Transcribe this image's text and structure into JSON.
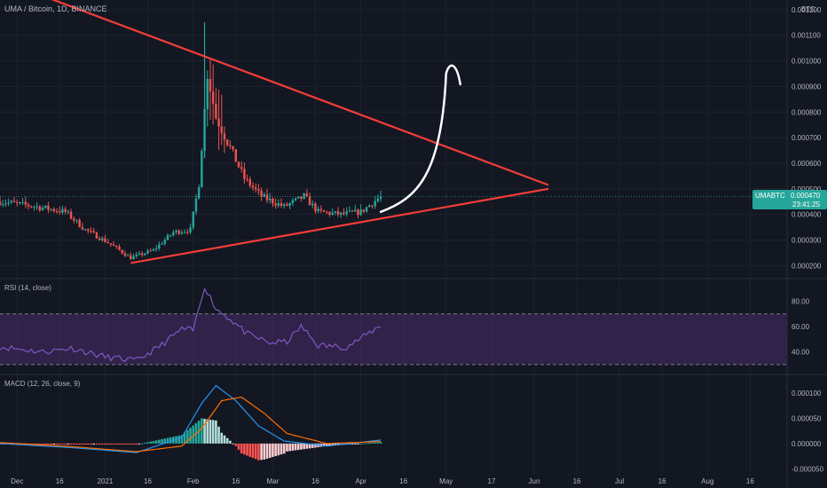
{
  "header": {
    "symbol_title": "UMA / Bitcoin, 1D, BINANCE",
    "currency": "BTC"
  },
  "price_tag": {
    "ticker": "UMABTC",
    "price": "0.000470",
    "countdown": "23:41:25"
  },
  "colors": {
    "background": "#131722",
    "up": "#26a69a",
    "down": "#ef5350",
    "trendline": "#f23d3a",
    "rsi_line": "#7e57c2",
    "rsi_band": "#4a2b6b",
    "macd_line": "#2196f3",
    "signal_line": "#ff6d00",
    "arrow": "#ffffff"
  },
  "panes": {
    "rsi_label": "RSI (14, close)",
    "macd_label": "MACD (12, 26, close, 9)"
  },
  "chart_data": [
    {
      "type": "candlestick",
      "pane": "price",
      "ylim": [
        0.00017,
        0.00121
      ],
      "y_ticks": [
        "0.001200",
        "0.001100",
        "0.001000",
        "0.000900",
        "0.000800",
        "0.000700",
        "0.000600",
        "0.000500",
        "0.000400",
        "0.000300",
        "0.000200"
      ],
      "x_ticks": [
        "Dec",
        "16",
        "2021",
        "16",
        "Feb",
        "16",
        "Mar",
        "16",
        "Apr",
        "16",
        "May",
        "17",
        "Jun",
        "16",
        "Jul",
        "16",
        "Aug",
        "16"
      ],
      "x_range": [
        "2020-11-25",
        "2021-08-29"
      ],
      "x_tick_dates": [
        "2020-12-01",
        "2020-12-16",
        "2021-01-01",
        "2021-01-16",
        "2021-02-01",
        "2021-02-16",
        "2021-03-01",
        "2021-03-16",
        "2021-04-01",
        "2021-04-16",
        "2021-05-01",
        "2021-05-17",
        "2021-06-01",
        "2021-06-16",
        "2021-07-01",
        "2021-07-16",
        "2021-08-01",
        "2021-08-16"
      ],
      "price_anchors": [
        [
          "2020-11-25",
          0.00045
        ],
        [
          "2020-12-08",
          0.00043
        ],
        [
          "2020-12-18",
          0.00041
        ],
        [
          "2020-12-25",
          0.00034
        ],
        [
          "2021-01-02",
          0.00029
        ],
        [
          "2021-01-10",
          0.00023
        ],
        [
          "2021-01-18",
          0.00026
        ],
        [
          "2021-01-25",
          0.00033
        ],
        [
          "2021-01-31",
          0.00034
        ],
        [
          "2021-02-03",
          0.00052
        ],
        [
          "2021-02-06",
          0.00095
        ],
        [
          "2021-02-09",
          0.00078
        ],
        [
          "2021-02-14",
          0.00066
        ],
        [
          "2021-02-19",
          0.00054
        ],
        [
          "2021-02-25",
          0.00047
        ],
        [
          "2021-03-05",
          0.00043
        ],
        [
          "2021-03-12",
          0.00047
        ],
        [
          "2021-03-17",
          0.00041
        ],
        [
          "2021-03-25",
          0.0004
        ],
        [
          "2021-04-01",
          0.00041
        ],
        [
          "2021-04-08",
          0.00047
        ]
      ],
      "last_price": 0.00047,
      "annotations": {
        "triangle_upper": [
          [
            "2020-12-11",
            0.00125
          ],
          [
            "2021-06-06",
            0.000515
          ]
        ],
        "triangle_lower": [
          [
            "2021-01-10",
            0.00021
          ],
          [
            "2021-06-06",
            0.0005
          ]
        ],
        "arrow": "curved arrow upward from apex"
      }
    },
    {
      "type": "line",
      "pane": "rsi",
      "ylim": [
        25,
        95
      ],
      "y_ticks": [
        "80.00",
        "60.00",
        "40.00"
      ],
      "band": [
        30,
        70
      ],
      "anchors": [
        [
          "2020-11-25",
          44
        ],
        [
          "2020-12-10",
          40
        ],
        [
          "2020-12-20",
          43
        ],
        [
          "2021-01-01",
          36
        ],
        [
          "2021-01-12",
          33
        ],
        [
          "2021-01-20",
          44
        ],
        [
          "2021-01-28",
          58
        ],
        [
          "2021-02-01",
          57
        ],
        [
          "2021-02-05",
          92
        ],
        [
          "2021-02-09",
          74
        ],
        [
          "2021-02-14",
          66
        ],
        [
          "2021-02-20",
          54
        ],
        [
          "2021-02-28",
          47
        ],
        [
          "2021-03-06",
          48
        ],
        [
          "2021-03-11",
          60
        ],
        [
          "2021-03-17",
          45
        ],
        [
          "2021-03-27",
          44
        ],
        [
          "2021-04-02",
          52
        ],
        [
          "2021-04-08",
          61
        ]
      ]
    },
    {
      "type": "histogram+lines",
      "pane": "macd",
      "ylim": [
        -6e-05,
        0.00013
      ],
      "y_ticks": [
        "0.000100",
        "0.000050",
        "0.000000",
        "-0.000050"
      ],
      "macd_anchors": [
        [
          "2020-11-25",
          0.0
        ],
        [
          "2020-12-20",
          -8e-06
        ],
        [
          "2021-01-12",
          -1.8e-05
        ],
        [
          "2021-01-28",
          1.2e-05
        ],
        [
          "2021-02-04",
          8e-05
        ],
        [
          "2021-02-09",
          0.000115
        ],
        [
          "2021-02-16",
          8.5e-05
        ],
        [
          "2021-02-24",
          3.5e-05
        ],
        [
          "2021-03-05",
          5e-06
        ],
        [
          "2021-03-20",
          -5e-06
        ],
        [
          "2021-04-08",
          7e-06
        ]
      ],
      "signal_anchors": [
        [
          "2020-11-25",
          2e-06
        ],
        [
          "2020-12-20",
          -6e-06
        ],
        [
          "2021-01-12",
          -1.6e-05
        ],
        [
          "2021-01-28",
          -5e-06
        ],
        [
          "2021-02-04",
          3e-05
        ],
        [
          "2021-02-11",
          8.5e-05
        ],
        [
          "2021-02-18",
          9.2e-05
        ],
        [
          "2021-02-26",
          6e-05
        ],
        [
          "2021-03-06",
          2e-05
        ],
        [
          "2021-03-20",
          0.0
        ],
        [
          "2021-04-08",
          4e-06
        ]
      ]
    }
  ]
}
